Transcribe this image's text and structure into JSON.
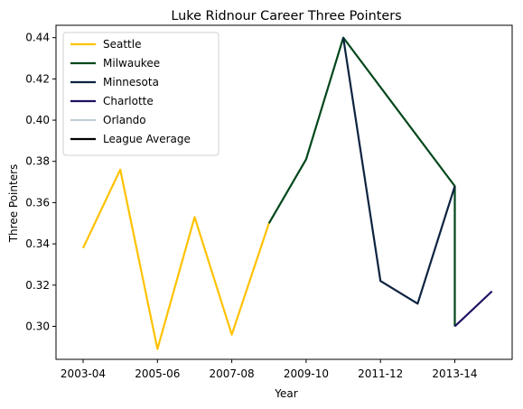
{
  "chart_data": {
    "type": "line",
    "title": "Luke Ridnour Career Three Pointers",
    "xlabel": "Year",
    "ylabel": "Three Pointers",
    "x_categories": [
      "2003-04",
      "2004-05",
      "2005-06",
      "2006-07",
      "2007-08",
      "2008-09",
      "2009-10",
      "2010-11",
      "2011-12",
      "2012-13",
      "2013-14",
      "2014-15"
    ],
    "x_ticks": [
      "2003-04",
      "2005-06",
      "2007-08",
      "2009-10",
      "2011-12",
      "2013-14"
    ],
    "ylim": [
      0.284,
      0.446
    ],
    "y_ticks": [
      0.3,
      0.32,
      0.34,
      0.36,
      0.38,
      0.4,
      0.42,
      0.44
    ],
    "y_tick_labels": [
      "0.30",
      "0.32",
      "0.34",
      "0.36",
      "0.38",
      "0.40",
      "0.42",
      "0.44"
    ],
    "grid": false,
    "legend_position": "top-left",
    "series": [
      {
        "name": "Seattle",
        "color": "#FFC200",
        "points": [
          [
            "2003-04",
            0.338
          ],
          [
            "2004-05",
            0.376
          ],
          [
            "2005-06",
            0.289
          ],
          [
            "2006-07",
            0.353
          ],
          [
            "2007-08",
            0.296
          ],
          [
            "2008-09",
            0.35
          ]
        ]
      },
      {
        "name": "Milwaukee",
        "color": "#00471B",
        "points": [
          [
            "2008-09",
            0.35
          ],
          [
            "2009-10",
            0.381
          ],
          [
            "2010-11",
            0.44
          ],
          [
            "2013-14",
            0.368
          ],
          [
            "2013-14",
            0.3
          ]
        ]
      },
      {
        "name": "Minnesota",
        "color": "#0C2340",
        "points": [
          [
            "2010-11",
            0.44
          ],
          [
            "2011-12",
            0.322
          ],
          [
            "2012-13",
            0.311
          ],
          [
            "2013-14",
            0.368
          ]
        ]
      },
      {
        "name": "Charlotte",
        "color": "#1D1160",
        "points": [
          [
            "2013-14",
            0.3
          ],
          [
            "2014-15",
            0.317
          ]
        ]
      },
      {
        "name": "Orlando",
        "color": "#C4CED4",
        "points": []
      },
      {
        "name": "League Average",
        "color": "#000000",
        "points": []
      }
    ]
  }
}
